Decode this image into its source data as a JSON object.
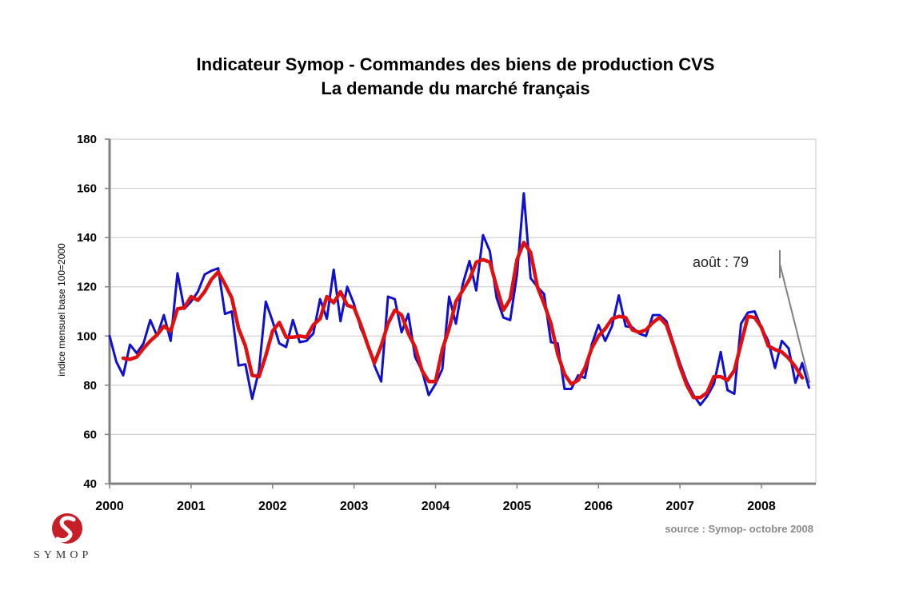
{
  "header": {
    "title": "Indicateur Symop - Commandes des biens de production CVS",
    "subtitle": "La demande du marché français"
  },
  "footer": {
    "source": "source : Symop- octobre 2008",
    "logo_text": "SYMOP"
  },
  "colors": {
    "monthly": "#1010d0",
    "smoothed": "#e01010",
    "grid": "#c8c8c8",
    "axis": "#808080",
    "logo": "#c81e28"
  },
  "chart_data": {
    "type": "line",
    "ylabel": "indice mensuel base 100=2000",
    "ylim": [
      40,
      180
    ],
    "yticks": [
      "40",
      "60",
      "80",
      "100",
      "120",
      "140",
      "160",
      "180"
    ],
    "xlim": [
      2000,
      2008.667
    ],
    "xtick_labels": [
      "2000",
      "2001",
      "2002",
      "2003",
      "2004",
      "2005",
      "2006",
      "2007",
      "2008"
    ],
    "grid": true,
    "annotation": {
      "text": "août : 79",
      "x": 2008.583,
      "y": 79
    },
    "series": [
      {
        "key": "monthly",
        "x_start": 2000.0,
        "x_step": 0.08333,
        "values": [
          100,
          89.5,
          84,
          96.5,
          93,
          97,
          106.5,
          100,
          108.5,
          98,
          125.5,
          111,
          114,
          118,
          125,
          126.5,
          127.5,
          109,
          110,
          88,
          88.5,
          74.5,
          86,
          114,
          106,
          97,
          95.5,
          106.5,
          97.5,
          98,
          101,
          115,
          107,
          127,
          106,
          120,
          113,
          103,
          97,
          88,
          81.5,
          116,
          115,
          101.5,
          109,
          91.5,
          86,
          76,
          80.5,
          86.5,
          116,
          105,
          121,
          130.5,
          118.5,
          141,
          134.5,
          115.5,
          107.5,
          106.5,
          125,
          158,
          123.5,
          120,
          117,
          97.5,
          97,
          78.5,
          78.5,
          84,
          83,
          96.5,
          104.5,
          98,
          104,
          116.5,
          104,
          103.5,
          101,
          100,
          108.5,
          108.5,
          106,
          97.5,
          89,
          81.5,
          76,
          72,
          75.5,
          80.5,
          93.5,
          78,
          76.5,
          105,
          109.5,
          110,
          103.5,
          98,
          87,
          98,
          95,
          81,
          89,
          79
        ]
      },
      {
        "key": "smoothed",
        "x_start": 2000.167,
        "x_step": 0.08333,
        "values": [
          91,
          90.5,
          91.5,
          95,
          98,
          100.5,
          104,
          102,
          111,
          111.5,
          116,
          114.5,
          118,
          123,
          126,
          121,
          115.5,
          103,
          96,
          84,
          83.5,
          92,
          102,
          105.5,
          99.5,
          99.5,
          100,
          99.5,
          104.5,
          107,
          116,
          113.5,
          118,
          112.5,
          111.5,
          104.5,
          96.5,
          89,
          96,
          105,
          110.5,
          108.5,
          101,
          95.5,
          86,
          81.5,
          81.5,
          94.5,
          103,
          114,
          118.5,
          123,
          130,
          131,
          130,
          120,
          110.5,
          115,
          131,
          138,
          134,
          120,
          113,
          105,
          92.5,
          84.5,
          80.5,
          82,
          87,
          95,
          100,
          103,
          107,
          108,
          107.5,
          102.5,
          101.5,
          102.5,
          105.5,
          107.5,
          104.5,
          96.5,
          87.5,
          80,
          75,
          75,
          77,
          83.5,
          83.5,
          82,
          86,
          97,
          108,
          107.5,
          103.5,
          96,
          94.5,
          93.5,
          91,
          87.5,
          83
        ]
      }
    ]
  }
}
